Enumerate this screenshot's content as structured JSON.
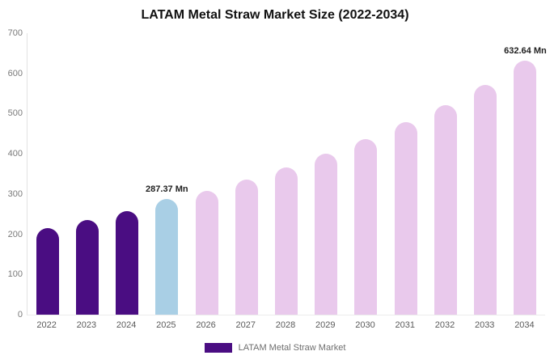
{
  "title": "LATAM Metal Straw Market Size (2022-2034)",
  "legend": {
    "label": "LATAM Metal Straw Market",
    "color": "#4a0d82"
  },
  "colors": {
    "historical": "#4a0d82",
    "highlight": "#a9cfe5",
    "forecast": "#e9c9ec"
  },
  "chart_data": {
    "type": "bar",
    "categories": [
      "2022",
      "2023",
      "2024",
      "2025",
      "2026",
      "2027",
      "2028",
      "2029",
      "2030",
      "2031",
      "2032",
      "2033",
      "2034"
    ],
    "values": [
      215,
      235,
      257,
      287.37,
      307,
      335,
      366,
      400,
      437,
      478,
      522,
      571,
      632.64
    ],
    "point_roles": [
      "historical",
      "historical",
      "historical",
      "highlight",
      "forecast",
      "forecast",
      "forecast",
      "forecast",
      "forecast",
      "forecast",
      "forecast",
      "forecast",
      "forecast"
    ],
    "point_labels": [
      "",
      "",
      "",
      "287.37 Mn",
      "",
      "",
      "",
      "",
      "",
      "",
      "",
      "",
      "632.64 Mn"
    ],
    "title": "LATAM Metal Straw Market Size (2022-2034)",
    "xlabel": "",
    "ylabel": "",
    "ylim": [
      0,
      700
    ],
    "yticks": [
      0,
      100,
      200,
      300,
      400,
      500,
      600,
      700
    ],
    "grid": false,
    "legend_position": "bottom"
  }
}
